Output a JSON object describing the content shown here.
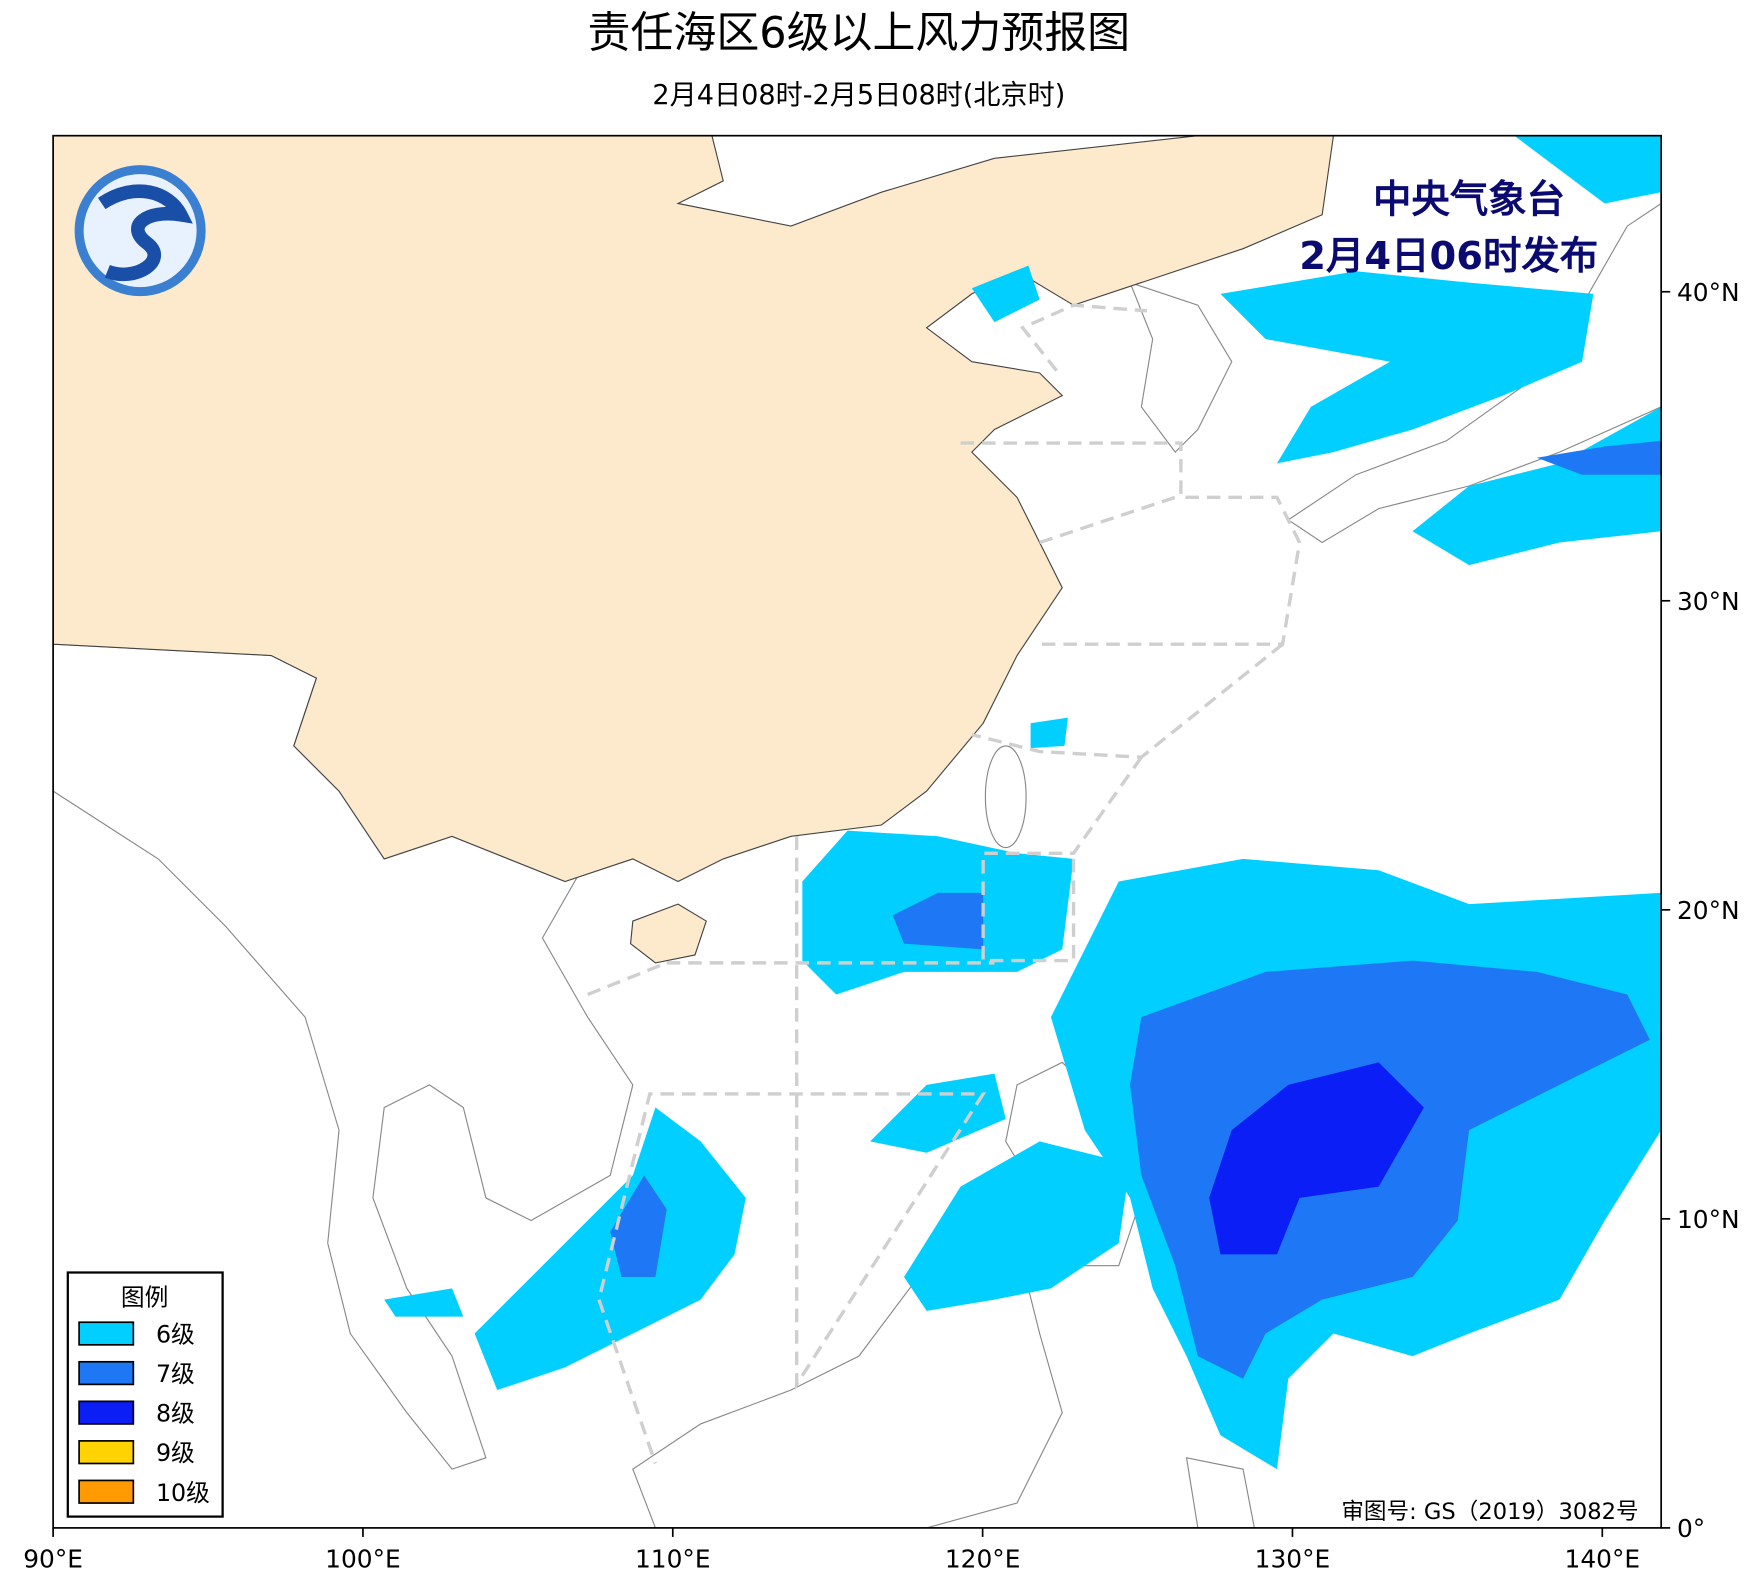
{
  "header": {
    "title": "责任海区6级以上风力预报图",
    "subtitle": "2月4日08时-2月5日08时(北京时)"
  },
  "issuer": {
    "agency": "中央气象台",
    "time": "2月4日06时发布"
  },
  "legend": {
    "title": "图例",
    "items": [
      {
        "label": "6级",
        "color": "#00cfff"
      },
      {
        "label": "7级",
        "color": "#1e78f5"
      },
      {
        "label": "8级",
        "color": "#0a1ef5"
      },
      {
        "label": "9级",
        "color": "#ffd200"
      },
      {
        "label": "10级",
        "color": "#ff9a00"
      }
    ]
  },
  "axes": {
    "xlim": [
      90,
      141.9
    ],
    "ylim": [
      0,
      45.05
    ],
    "xticks": [
      {
        "value": 90,
        "label": "90°E"
      },
      {
        "value": 100,
        "label": "100°E"
      },
      {
        "value": 110,
        "label": "110°E"
      },
      {
        "value": 120,
        "label": "120°E"
      },
      {
        "value": 130,
        "label": "130°E"
      },
      {
        "value": 140,
        "label": "140°E"
      }
    ],
    "yticks": [
      {
        "value": 0,
        "label": "0°"
      },
      {
        "value": 10,
        "label": "10°N"
      },
      {
        "value": 20,
        "label": "20°N"
      },
      {
        "value": 30,
        "label": "30°N"
      },
      {
        "value": 40,
        "label": "40°N"
      }
    ]
  },
  "footer": {
    "approval": "审图号: GS（2019）3082号"
  }
}
